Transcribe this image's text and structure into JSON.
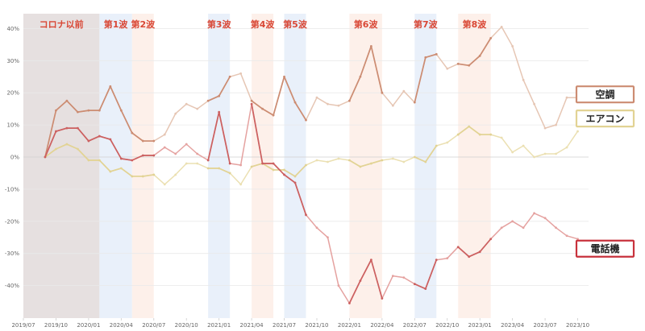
{
  "chart_data": {
    "type": "line",
    "x": [
      "2019/07",
      "2019/08",
      "2019/09",
      "2019/10",
      "2019/11",
      "2019/12",
      "2020/01",
      "2020/02",
      "2020/03",
      "2020/04",
      "2020/05",
      "2020/06",
      "2020/07",
      "2020/08",
      "2020/09",
      "2020/10",
      "2020/11",
      "2020/12",
      "2021/01",
      "2021/02",
      "2021/03",
      "2021/04",
      "2021/05",
      "2021/06",
      "2021/07",
      "2021/08",
      "2021/09",
      "2021/10",
      "2021/11",
      "2021/12",
      "2022/01",
      "2022/02",
      "2022/03",
      "2022/04",
      "2022/05",
      "2022/06",
      "2022/07",
      "2022/08",
      "2022/09",
      "2022/10",
      "2022/11",
      "2022/12",
      "2023/01",
      "2023/02",
      "2023/03",
      "2023/04",
      "2023/05",
      "2023/06",
      "2023/07",
      "2023/08",
      "2023/09",
      "2023/10",
      "2023/11"
    ],
    "x_tick_labels": [
      "2019/07",
      "2019/10",
      "2020/01",
      "2020/04",
      "2020/07",
      "2020/10",
      "2021/01",
      "2021/04",
      "2021/07",
      "2021/10",
      "2022/01",
      "2022/04",
      "2022/07",
      "2022/10",
      "2023/01",
      "2023/04",
      "2023/07",
      "2023/10"
    ],
    "y_tick_labels": [
      "40%",
      "30%",
      "20%",
      "10%",
      "0%",
      "-10%",
      "-20%",
      "-30%",
      "-40%"
    ],
    "ylim": [
      -50,
      42
    ],
    "y_unit": "%",
    "grid": true,
    "series": [
      {
        "name": "空調",
        "color": "#cc8c72",
        "light_color": "#e6c6b4",
        "values": [
          null,
          null,
          0,
          14.5,
          17.5,
          14,
          14.5,
          14.5,
          22,
          14.5,
          7.5,
          5,
          5,
          7,
          13.5,
          16.5,
          15,
          17.5,
          19,
          25,
          26,
          17.5,
          15,
          13,
          25,
          17,
          11.5,
          18.5,
          16.5,
          16,
          17.5,
          25,
          34.5,
          20,
          16,
          20.5,
          17,
          31,
          32,
          27.5,
          29,
          28.5,
          31.5,
          37,
          40.5,
          34.5,
          24,
          16.5,
          9,
          10,
          18.5,
          18.5,
          null
        ]
      },
      {
        "name": "エアコン",
        "color": "#e2d394",
        "light_color": "#ebe0b2",
        "values": [
          null,
          null,
          0,
          2.5,
          4,
          2.5,
          -1,
          -1,
          -4.5,
          -3.5,
          -6,
          -6,
          -5.5,
          -8.5,
          -5.5,
          -2,
          -2,
          -3.5,
          -3.5,
          -5,
          -8.5,
          -3,
          -2,
          -4,
          -4,
          -6,
          -2.5,
          -1,
          -1.5,
          -0.5,
          -1,
          -3,
          -2,
          -1,
          -0.5,
          -1.5,
          0,
          -1.5,
          3.5,
          4.5,
          7,
          9.5,
          7,
          7,
          6,
          1.5,
          3.5,
          0,
          1,
          1,
          3,
          8,
          null
        ]
      },
      {
        "name": "電話機",
        "color": "#cc6060",
        "light_color": "#e5a2a0",
        "values": [
          null,
          null,
          0,
          8,
          9,
          9,
          5,
          6.5,
          5.5,
          -0.5,
          -1,
          0.5,
          0.5,
          3,
          1,
          4,
          1,
          -1,
          14,
          -2,
          -2.5,
          16.5,
          -2,
          -2,
          -5.5,
          -8,
          -18,
          -22,
          -25,
          -40,
          -45.5,
          -38.5,
          -32,
          -44,
          -37,
          -37.5,
          -39.5,
          -41,
          -32,
          -31.5,
          -28,
          -31,
          -29.5,
          -25.5,
          -22,
          -20,
          -22,
          -17.5,
          -19,
          -22,
          -24.5,
          -25.5,
          null
        ]
      }
    ],
    "shaded_periods": [
      {
        "label": "コロナ以前",
        "start": "2019/07",
        "end": "2020/02",
        "color": "#e6e0e0",
        "label_color": "#d94836"
      },
      {
        "label": "第1波",
        "start": "2020/02",
        "end": "2020/05",
        "color": "#e9f0fa",
        "label_color": "#d94836"
      },
      {
        "label": "第2波",
        "start": "2020/05",
        "end": "2020/07",
        "color": "#fdf0ea",
        "label_color": "#d94836"
      },
      {
        "label": "第3波",
        "start": "2020/12",
        "end": "2021/02",
        "color": "#e9f0fa",
        "label_color": "#d94836"
      },
      {
        "label": "第4波",
        "start": "2021/04",
        "end": "2021/06",
        "color": "#fdf0ea",
        "label_color": "#d94836"
      },
      {
        "label": "第5波",
        "start": "2021/07",
        "end": "2021/09",
        "color": "#e9f0fa",
        "label_color": "#d94836"
      },
      {
        "label": "第6波",
        "start": "2022/01",
        "end": "2022/04",
        "color": "#fdf0ea",
        "label_color": "#d94836"
      },
      {
        "label": "第7波",
        "start": "2022/07",
        "end": "2022/09",
        "color": "#e9f0fa",
        "label_color": "#d94836"
      },
      {
        "label": "第8波",
        "start": "2022/11",
        "end": "2023/02",
        "color": "#fdf0ea",
        "label_color": "#d94836"
      }
    ],
    "legend_placement": "right",
    "legend": [
      {
        "label": "空調",
        "border_color": "#cc8c72"
      },
      {
        "label": "エアコン",
        "border_color": "#e2d394"
      },
      {
        "label": "電話機",
        "border_color": "#c8323c"
      }
    ]
  }
}
